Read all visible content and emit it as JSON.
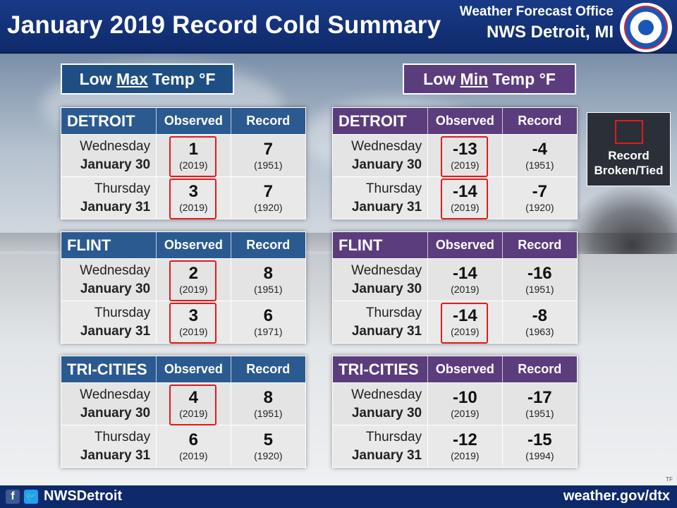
{
  "header": {
    "title": "January 2019 Record Cold Summary",
    "office_line1": "Weather Forecast Office",
    "office_line2": "NWS Detroit, MI"
  },
  "sections": {
    "max": {
      "prefix": "Low ",
      "underlined": "Max",
      "suffix": " Temp °F"
    },
    "min": {
      "prefix": "Low ",
      "underlined": "Min",
      "suffix": " Temp °F"
    }
  },
  "columns": {
    "observed": "Observed",
    "record": "Record"
  },
  "max_tables": [
    {
      "city": "DETROIT",
      "rows": [
        {
          "day": "Wednesday",
          "date": "January 30",
          "obs": "1",
          "obs_year": "(2019)",
          "rec": "7",
          "rec_year": "(1951)",
          "broken": true
        },
        {
          "day": "Thursday",
          "date": "January 31",
          "obs": "3",
          "obs_year": "(2019)",
          "rec": "7",
          "rec_year": "(1920)",
          "broken": true
        }
      ]
    },
    {
      "city": "FLINT",
      "rows": [
        {
          "day": "Wednesday",
          "date": "January 30",
          "obs": "2",
          "obs_year": "(2019)",
          "rec": "8",
          "rec_year": "(1951)",
          "broken": true
        },
        {
          "day": "Thursday",
          "date": "January 31",
          "obs": "3",
          "obs_year": "(2019)",
          "rec": "6",
          "rec_year": "(1971)",
          "broken": true
        }
      ]
    },
    {
      "city": "TRI-CITIES",
      "rows": [
        {
          "day": "Wednesday",
          "date": "January 30",
          "obs": "4",
          "obs_year": "(2019)",
          "rec": "8",
          "rec_year": "(1951)",
          "broken": true
        },
        {
          "day": "Thursday",
          "date": "January 31",
          "obs": "6",
          "obs_year": "(2019)",
          "rec": "5",
          "rec_year": "(1920)",
          "broken": false
        }
      ]
    }
  ],
  "min_tables": [
    {
      "city": "DETROIT",
      "rows": [
        {
          "day": "Wednesday",
          "date": "January 30",
          "obs": "-13",
          "obs_year": "(2019)",
          "rec": "-4",
          "rec_year": "(1951)",
          "broken": true
        },
        {
          "day": "Thursday",
          "date": "January 31",
          "obs": "-14",
          "obs_year": "(2019)",
          "rec": "-7",
          "rec_year": "(1920)",
          "broken": true
        }
      ]
    },
    {
      "city": "FLINT",
      "rows": [
        {
          "day": "Wednesday",
          "date": "January 30",
          "obs": "-14",
          "obs_year": "(2019)",
          "rec": "-16",
          "rec_year": "(1951)",
          "broken": false
        },
        {
          "day": "Thursday",
          "date": "January 31",
          "obs": "-14",
          "obs_year": "(2019)",
          "rec": "-8",
          "rec_year": "(1963)",
          "broken": true
        }
      ]
    },
    {
      "city": "TRI-CITIES",
      "rows": [
        {
          "day": "Wednesday",
          "date": "January 30",
          "obs": "-10",
          "obs_year": "(2019)",
          "rec": "-17",
          "rec_year": "(1951)",
          "broken": false
        },
        {
          "day": "Thursday",
          "date": "January 31",
          "obs": "-12",
          "obs_year": "(2019)",
          "rec": "-15",
          "rec_year": "(1994)",
          "broken": false
        }
      ]
    }
  ],
  "legend": {
    "line1": "Record",
    "line2": "Broken/Tied"
  },
  "footer": {
    "handle": "NWSDetroit",
    "url": "weather.gov/dtx"
  },
  "initials": "TF",
  "colors": {
    "header": "#0f2a6b",
    "max_blue": "#2b5a91",
    "min_purple": "#5b3d7d",
    "record_red": "#e21b1b"
  }
}
